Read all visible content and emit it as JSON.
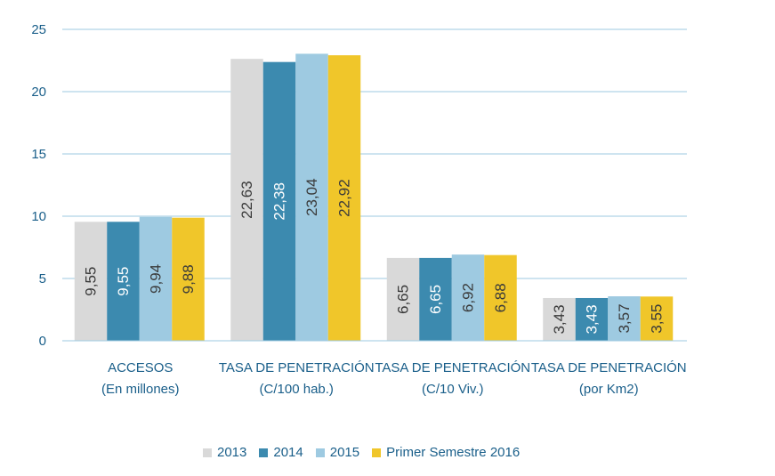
{
  "chart_data": {
    "type": "bar",
    "categories": [
      [
        "ACCESOS",
        "(En millones)"
      ],
      [
        "TASA DE PENETRACIÓN",
        "(C/100 hab.)"
      ],
      [
        "TASA DE PENETRACIÓN",
        "(C/10 Viv.)"
      ],
      [
        "TASA DE PENETRACIÓN",
        "(por Km2)"
      ]
    ],
    "series": [
      {
        "name": "2013",
        "color": "#d9d9d9",
        "values": [
          9.55,
          22.63,
          6.65,
          3.43
        ],
        "labels": [
          "9,55",
          "22,63",
          "6,65",
          "3,43"
        ]
      },
      {
        "name": "2014",
        "color": "#3c8aaf",
        "values": [
          9.55,
          22.38,
          6.65,
          3.43
        ],
        "labels": [
          "9,55",
          "22,38",
          "6,65",
          "3,43"
        ]
      },
      {
        "name": "2015",
        "color": "#9ecae1",
        "values": [
          9.94,
          23.04,
          6.92,
          3.57
        ],
        "labels": [
          "9,94",
          "23,04",
          "6,92",
          "3,57"
        ]
      },
      {
        "name": "Primer Semestre 2016",
        "color": "#f0c62a",
        "values": [
          9.88,
          22.92,
          6.88,
          3.55
        ],
        "labels": [
          "9,88",
          "22,92",
          "6,88",
          "3,55"
        ]
      }
    ],
    "ylim": [
      0,
      25
    ],
    "yticks": [
      0,
      5,
      10,
      15,
      20,
      25
    ],
    "ytick_labels": [
      "0",
      "5",
      "10",
      "15",
      "20",
      "25"
    ],
    "grid": true,
    "legend_position": "bottom",
    "gridline_color": "#9ecae1",
    "axis_text_color": "#1a5f8a"
  }
}
